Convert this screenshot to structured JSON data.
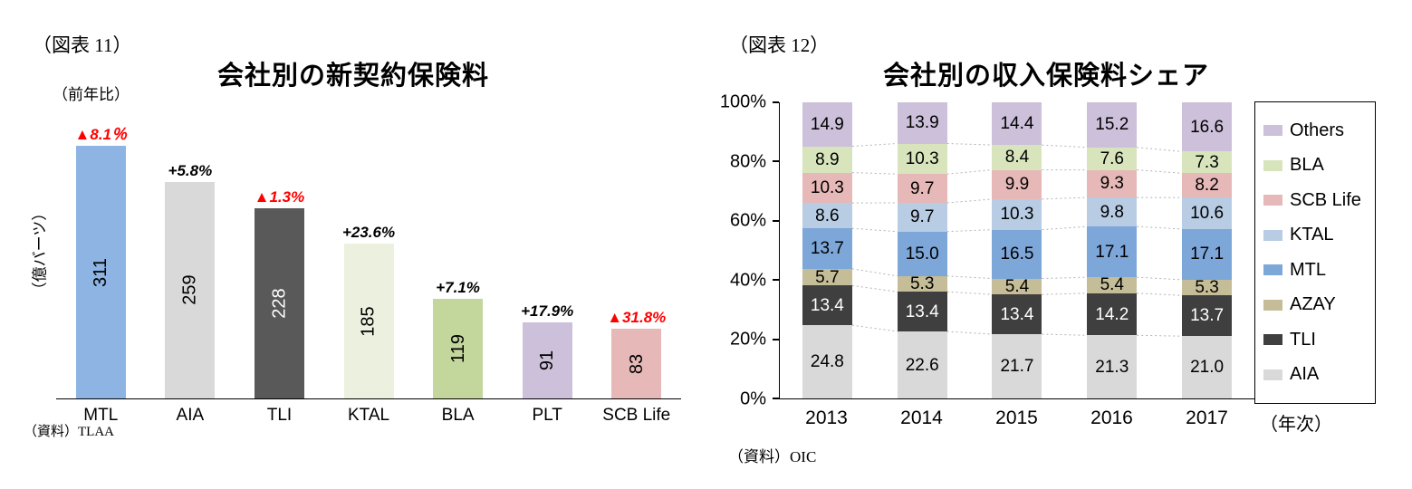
{
  "chart_data": [
    {
      "id": "new_business_premiums",
      "type": "bar",
      "figure_label": "（図表 11）",
      "title": "会社別の新契約保険料",
      "annotation_header": "（前年比）",
      "ylabel": "（億バーツ）",
      "source": "（資料）TLAA",
      "categories": [
        "MTL",
        "AIA",
        "TLI",
        "KTAL",
        "BLA",
        "PLT",
        "SCB Life"
      ],
      "values": [
        311,
        259,
        228,
        185,
        119,
        91,
        83
      ],
      "yoy_labels": [
        "▲8.1％",
        "+5.8%",
        "▲1.3%",
        "+23.6%",
        "+7.1%",
        "+17.9%",
        "▲31.8%"
      ],
      "yoy_negative": [
        true,
        false,
        true,
        false,
        false,
        false,
        true
      ],
      "negative_color": "#ff0000",
      "positive_color": "#000000",
      "bar_colors": [
        "#8db4e2",
        "#d9d9d9",
        "#595959",
        "#ebf1de",
        "#c3d69b",
        "#ccc0da",
        "#e6b9b8"
      ],
      "label_colors": [
        "#000000",
        "#000000",
        "#ffffff",
        "#000000",
        "#000000",
        "#000000",
        "#000000"
      ],
      "ylim": [
        0,
        325
      ],
      "grid": false,
      "value_labels": "inside-rotated"
    },
    {
      "id": "premium_income_share",
      "type": "stacked_bar_100",
      "figure_label": "（図表 12）",
      "title": "会社別の収入保険料シェア",
      "xlabel": "（年次）",
      "source": "（資料）OIC",
      "categories": [
        "2013",
        "2014",
        "2015",
        "2016",
        "2017"
      ],
      "series": [
        {
          "name": "AIA",
          "color": "#d9d9d9",
          "text": "#000000",
          "values": [
            24.8,
            22.6,
            21.7,
            21.3,
            21.0
          ]
        },
        {
          "name": "TLI",
          "color": "#3f3f3f",
          "text": "#ffffff",
          "values": [
            13.4,
            13.4,
            13.4,
            14.2,
            13.7
          ]
        },
        {
          "name": "AZAY",
          "color": "#c4bd97",
          "text": "#000000",
          "values": [
            5.7,
            5.3,
            5.4,
            5.4,
            5.3
          ]
        },
        {
          "name": "MTL",
          "color": "#7da6d9",
          "text": "#000000",
          "values": [
            13.7,
            15.0,
            16.5,
            17.1,
            17.1
          ]
        },
        {
          "name": "KTAL",
          "color": "#b8cce4",
          "text": "#000000",
          "values": [
            8.6,
            9.7,
            10.3,
            9.8,
            10.6
          ]
        },
        {
          "name": "SCB Life",
          "color": "#e6b9b8",
          "text": "#000000",
          "values": [
            10.3,
            9.7,
            9.9,
            9.3,
            8.2
          ]
        },
        {
          "name": "BLA",
          "color": "#d7e4bc",
          "text": "#000000",
          "values": [
            8.9,
            10.3,
            8.4,
            7.6,
            7.3
          ]
        },
        {
          "name": "Others",
          "color": "#ccc0da",
          "text": "#000000",
          "values": [
            14.9,
            13.9,
            14.4,
            15.2,
            16.6
          ]
        }
      ],
      "stack_order": "bottom_to_top_as_listed",
      "legend": [
        "Others",
        "BLA",
        "SCB Life",
        "KTAL",
        "MTL",
        "AZAY",
        "TLI",
        "AIA"
      ],
      "legend_position": "right",
      "y_ticks": [
        "100%",
        "80%",
        "60%",
        "40%",
        "20%",
        "0%"
      ],
      "ylim": [
        0,
        100
      ],
      "series_connector_lines": "dotted"
    }
  ]
}
